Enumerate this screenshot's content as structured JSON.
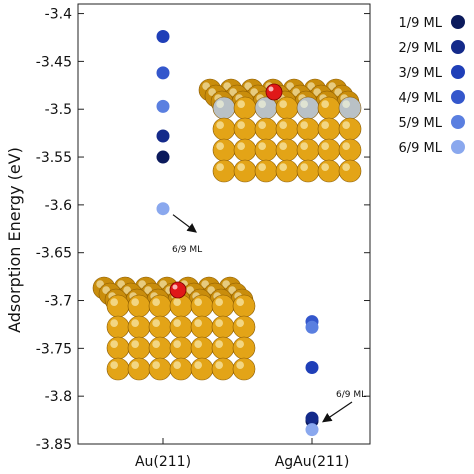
{
  "chart_data": {
    "type": "scatter",
    "ylabel": "Adsorption Energy (eV)",
    "ylim": [
      -3.85,
      -3.39
    ],
    "yticks": [
      -3.4,
      -3.45,
      -3.5,
      -3.55,
      -3.6,
      -3.65,
      -3.7,
      -3.75,
      -3.8,
      -3.85
    ],
    "categories": [
      "Au(211)",
      "AgAu(211)"
    ],
    "legend_position": "right",
    "series": [
      {
        "name": "1/9 ML",
        "color": "#0b1a5c",
        "values": [
          -3.55,
          -3.826
        ]
      },
      {
        "name": "2/9 ML",
        "color": "#142a8a",
        "values": [
          -3.528,
          -3.823
        ]
      },
      {
        "name": "3/9 ML",
        "color": "#1f3fb8",
        "values": [
          -3.424,
          -3.77
        ]
      },
      {
        "name": "4/9 ML",
        "color": "#3457cc",
        "values": [
          -3.462,
          -3.722
        ]
      },
      {
        "name": "5/9 ML",
        "color": "#5a7fe0",
        "values": [
          -3.497,
          -3.728
        ]
      },
      {
        "name": "6/9 ML",
        "color": "#8aa8ee",
        "values": [
          -3.604,
          -3.835
        ]
      }
    ],
    "annotations": [
      {
        "text": "6/9 ML",
        "category": "Au(211)"
      },
      {
        "text": "6/9 ML",
        "category": "AgAu(211)"
      }
    ]
  }
}
